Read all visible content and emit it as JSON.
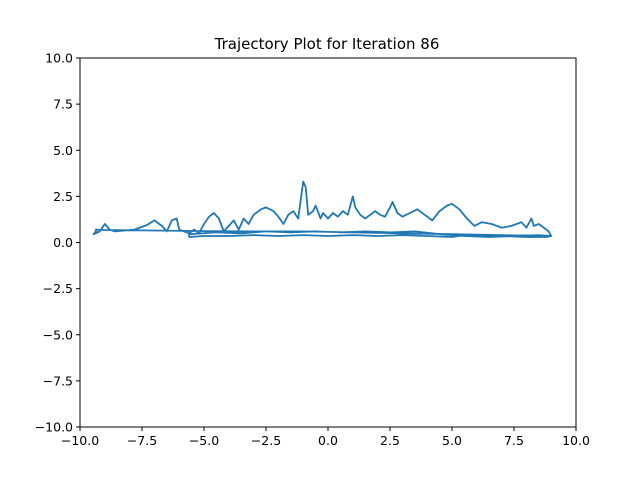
{
  "chart_data": {
    "type": "line",
    "title": "Trajectory Plot for Iteration 86",
    "xlabel": "",
    "ylabel": "",
    "xlim": [
      -10.0,
      10.0
    ],
    "ylim": [
      -10.0,
      10.0
    ],
    "x_ticks": [
      -10.0,
      -7.5,
      -5.0,
      -2.5,
      0.0,
      2.5,
      5.0,
      7.5,
      10.0
    ],
    "y_ticks": [
      -10.0,
      -7.5,
      -5.0,
      -2.5,
      0.0,
      2.5,
      5.0,
      7.5,
      10.0
    ],
    "x_tick_labels": [
      "−10.0",
      "−7.5",
      "−5.0",
      "−2.5",
      "0.0",
      "2.5",
      "5.0",
      "7.5",
      "10.0"
    ],
    "y_tick_labels": [
      "−10.0",
      "−7.5",
      "−5.0",
      "−2.5",
      "0.0",
      "2.5",
      "5.0",
      "7.5",
      "10.0"
    ],
    "grid": false,
    "line_color": "#1f77b4",
    "series": [
      {
        "values_xy": [
          [
            -9.4,
            0.55
          ],
          [
            -9.3,
            0.7
          ],
          [
            -9.45,
            0.45
          ],
          [
            -9.2,
            0.6
          ],
          [
            -9.0,
            1.0
          ],
          [
            -8.8,
            0.7
          ],
          [
            -8.6,
            0.6
          ],
          [
            -7.8,
            0.7
          ],
          [
            -7.3,
            0.95
          ],
          [
            -7.0,
            1.2
          ],
          [
            -6.7,
            0.9
          ],
          [
            -6.5,
            0.6
          ],
          [
            -6.3,
            1.2
          ],
          [
            -6.1,
            1.3
          ],
          [
            -6.0,
            0.7
          ],
          [
            -5.6,
            0.5
          ],
          [
            -5.4,
            0.7
          ],
          [
            -5.2,
            0.5
          ],
          [
            -5.0,
            1.0
          ],
          [
            -4.8,
            1.4
          ],
          [
            -4.6,
            1.6
          ],
          [
            -4.4,
            1.3
          ],
          [
            -4.2,
            0.6
          ],
          [
            -4.0,
            0.9
          ],
          [
            -3.8,
            1.2
          ],
          [
            -3.6,
            0.7
          ],
          [
            -3.4,
            1.3
          ],
          [
            -3.2,
            1.0
          ],
          [
            -3.0,
            1.5
          ],
          [
            -2.7,
            1.8
          ],
          [
            -2.5,
            1.9
          ],
          [
            -2.2,
            1.7
          ],
          [
            -2.0,
            1.4
          ],
          [
            -1.8,
            1.0
          ],
          [
            -1.6,
            1.5
          ],
          [
            -1.4,
            1.7
          ],
          [
            -1.2,
            1.3
          ],
          [
            -1.0,
            3.3
          ],
          [
            -0.9,
            3.0
          ],
          [
            -0.8,
            1.5
          ],
          [
            -0.6,
            1.7
          ],
          [
            -0.5,
            2.0
          ],
          [
            -0.3,
            1.3
          ],
          [
            -0.2,
            1.6
          ],
          [
            0.0,
            1.3
          ],
          [
            0.2,
            1.6
          ],
          [
            0.4,
            1.4
          ],
          [
            0.6,
            1.7
          ],
          [
            0.8,
            1.5
          ],
          [
            1.0,
            2.5
          ],
          [
            1.1,
            1.9
          ],
          [
            1.3,
            1.5
          ],
          [
            1.5,
            1.3
          ],
          [
            1.7,
            1.5
          ],
          [
            1.9,
            1.7
          ],
          [
            2.1,
            1.5
          ],
          [
            2.3,
            1.4
          ],
          [
            2.5,
            1.9
          ],
          [
            2.6,
            2.2
          ],
          [
            2.8,
            1.6
          ],
          [
            3.0,
            1.4
          ],
          [
            3.3,
            1.6
          ],
          [
            3.6,
            1.8
          ],
          [
            3.9,
            1.5
          ],
          [
            4.2,
            1.2
          ],
          [
            4.5,
            1.7
          ],
          [
            4.8,
            2.0
          ],
          [
            5.0,
            2.1
          ],
          [
            5.3,
            1.8
          ],
          [
            5.6,
            1.3
          ],
          [
            5.9,
            0.9
          ],
          [
            6.2,
            1.1
          ],
          [
            6.6,
            1.0
          ],
          [
            7.0,
            0.8
          ],
          [
            7.4,
            0.9
          ],
          [
            7.8,
            1.1
          ],
          [
            8.0,
            0.8
          ],
          [
            8.2,
            1.3
          ],
          [
            8.3,
            0.9
          ],
          [
            8.5,
            1.0
          ],
          [
            8.7,
            0.8
          ],
          [
            8.9,
            0.6
          ],
          [
            9.0,
            0.35
          ],
          [
            8.8,
            0.3
          ],
          [
            8.0,
            0.3
          ],
          [
            7.0,
            0.35
          ],
          [
            6.0,
            0.35
          ],
          [
            5.5,
            0.4
          ],
          [
            5.0,
            0.3
          ],
          [
            4.0,
            0.35
          ],
          [
            3.0,
            0.4
          ],
          [
            2.0,
            0.35
          ],
          [
            1.0,
            0.4
          ],
          [
            0.0,
            0.35
          ],
          [
            -1.0,
            0.4
          ],
          [
            -2.0,
            0.35
          ],
          [
            -3.0,
            0.4
          ],
          [
            -4.0,
            0.35
          ],
          [
            -5.0,
            0.35
          ],
          [
            -5.6,
            0.3
          ],
          [
            -5.6,
            0.45
          ],
          [
            -4.5,
            0.55
          ],
          [
            -3.5,
            0.5
          ],
          [
            -2.5,
            0.6
          ],
          [
            -1.5,
            0.55
          ],
          [
            -0.5,
            0.6
          ],
          [
            0.5,
            0.55
          ],
          [
            1.5,
            0.6
          ],
          [
            2.5,
            0.55
          ],
          [
            3.5,
            0.6
          ],
          [
            4.5,
            0.45
          ],
          [
            5.5,
            0.35
          ],
          [
            6.5,
            0.3
          ],
          [
            7.5,
            0.35
          ],
          [
            8.5,
            0.4
          ],
          [
            9.0,
            0.35
          ],
          [
            7.0,
            0.4
          ],
          [
            5.0,
            0.45
          ],
          [
            3.0,
            0.5
          ],
          [
            1.0,
            0.55
          ],
          [
            -1.0,
            0.6
          ],
          [
            -3.0,
            0.6
          ],
          [
            -5.0,
            0.62
          ],
          [
            -7.0,
            0.65
          ],
          [
            -9.0,
            0.68
          ],
          [
            -9.4,
            0.7
          ]
        ]
      }
    ]
  }
}
